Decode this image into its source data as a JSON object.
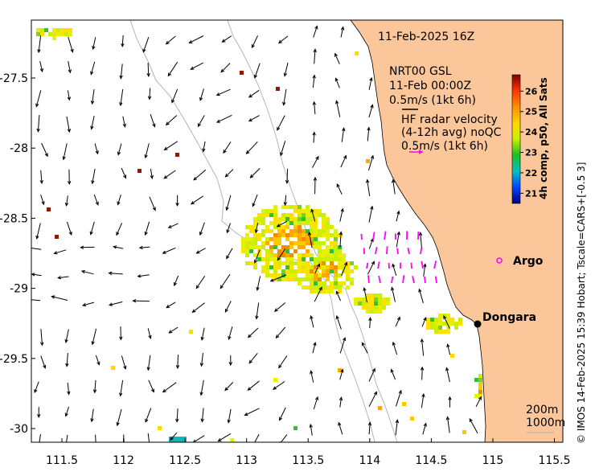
{
  "header": {
    "date_label": "11-Feb-2025 16Z"
  },
  "legend_info": {
    "line1": "NRT00 GSL",
    "line2": "11-Feb 00:00Z",
    "line3": "0.5m/s (1kt 6h)",
    "line4": "HF radar velocity",
    "line5": "(4-12h avg) noQC",
    "line6": "0.5m/s (1kt 6h)"
  },
  "colorbar": {
    "title": "4h comp, p50, All Sats",
    "ticks": [
      "21",
      "22",
      "23",
      "24",
      "25",
      "26"
    ],
    "range": [
      20.5,
      26.8
    ]
  },
  "axes": {
    "lon_ticks": [
      "111.5",
      "112",
      "112.5",
      "113",
      "113.5",
      "114",
      "114.5",
      "115",
      "115.5"
    ],
    "lat_ticks": [
      "-27.5",
      "-28",
      "-28.5",
      "-29",
      "-29.5",
      "-30"
    ],
    "lon_values": [
      111.5,
      112,
      112.5,
      113,
      113.5,
      114,
      114.5,
      115,
      115.5
    ],
    "lat_values": [
      -27.5,
      -28,
      -28.5,
      -29,
      -29.5,
      -30
    ]
  },
  "places": {
    "dongara": "Dongara",
    "argo": "Argo"
  },
  "depth_legend": {
    "d1": "200m",
    "d2": "1000m"
  },
  "credit": "© IMOS 14-Feb-2025 15:39 Hobart; Tscale=CARS+[-0.5 3]",
  "colors": {
    "land": "#fbc79a",
    "vector": "#000000",
    "hf_vector": "#ff00ff",
    "isobath": "#b4b4b4"
  }
}
